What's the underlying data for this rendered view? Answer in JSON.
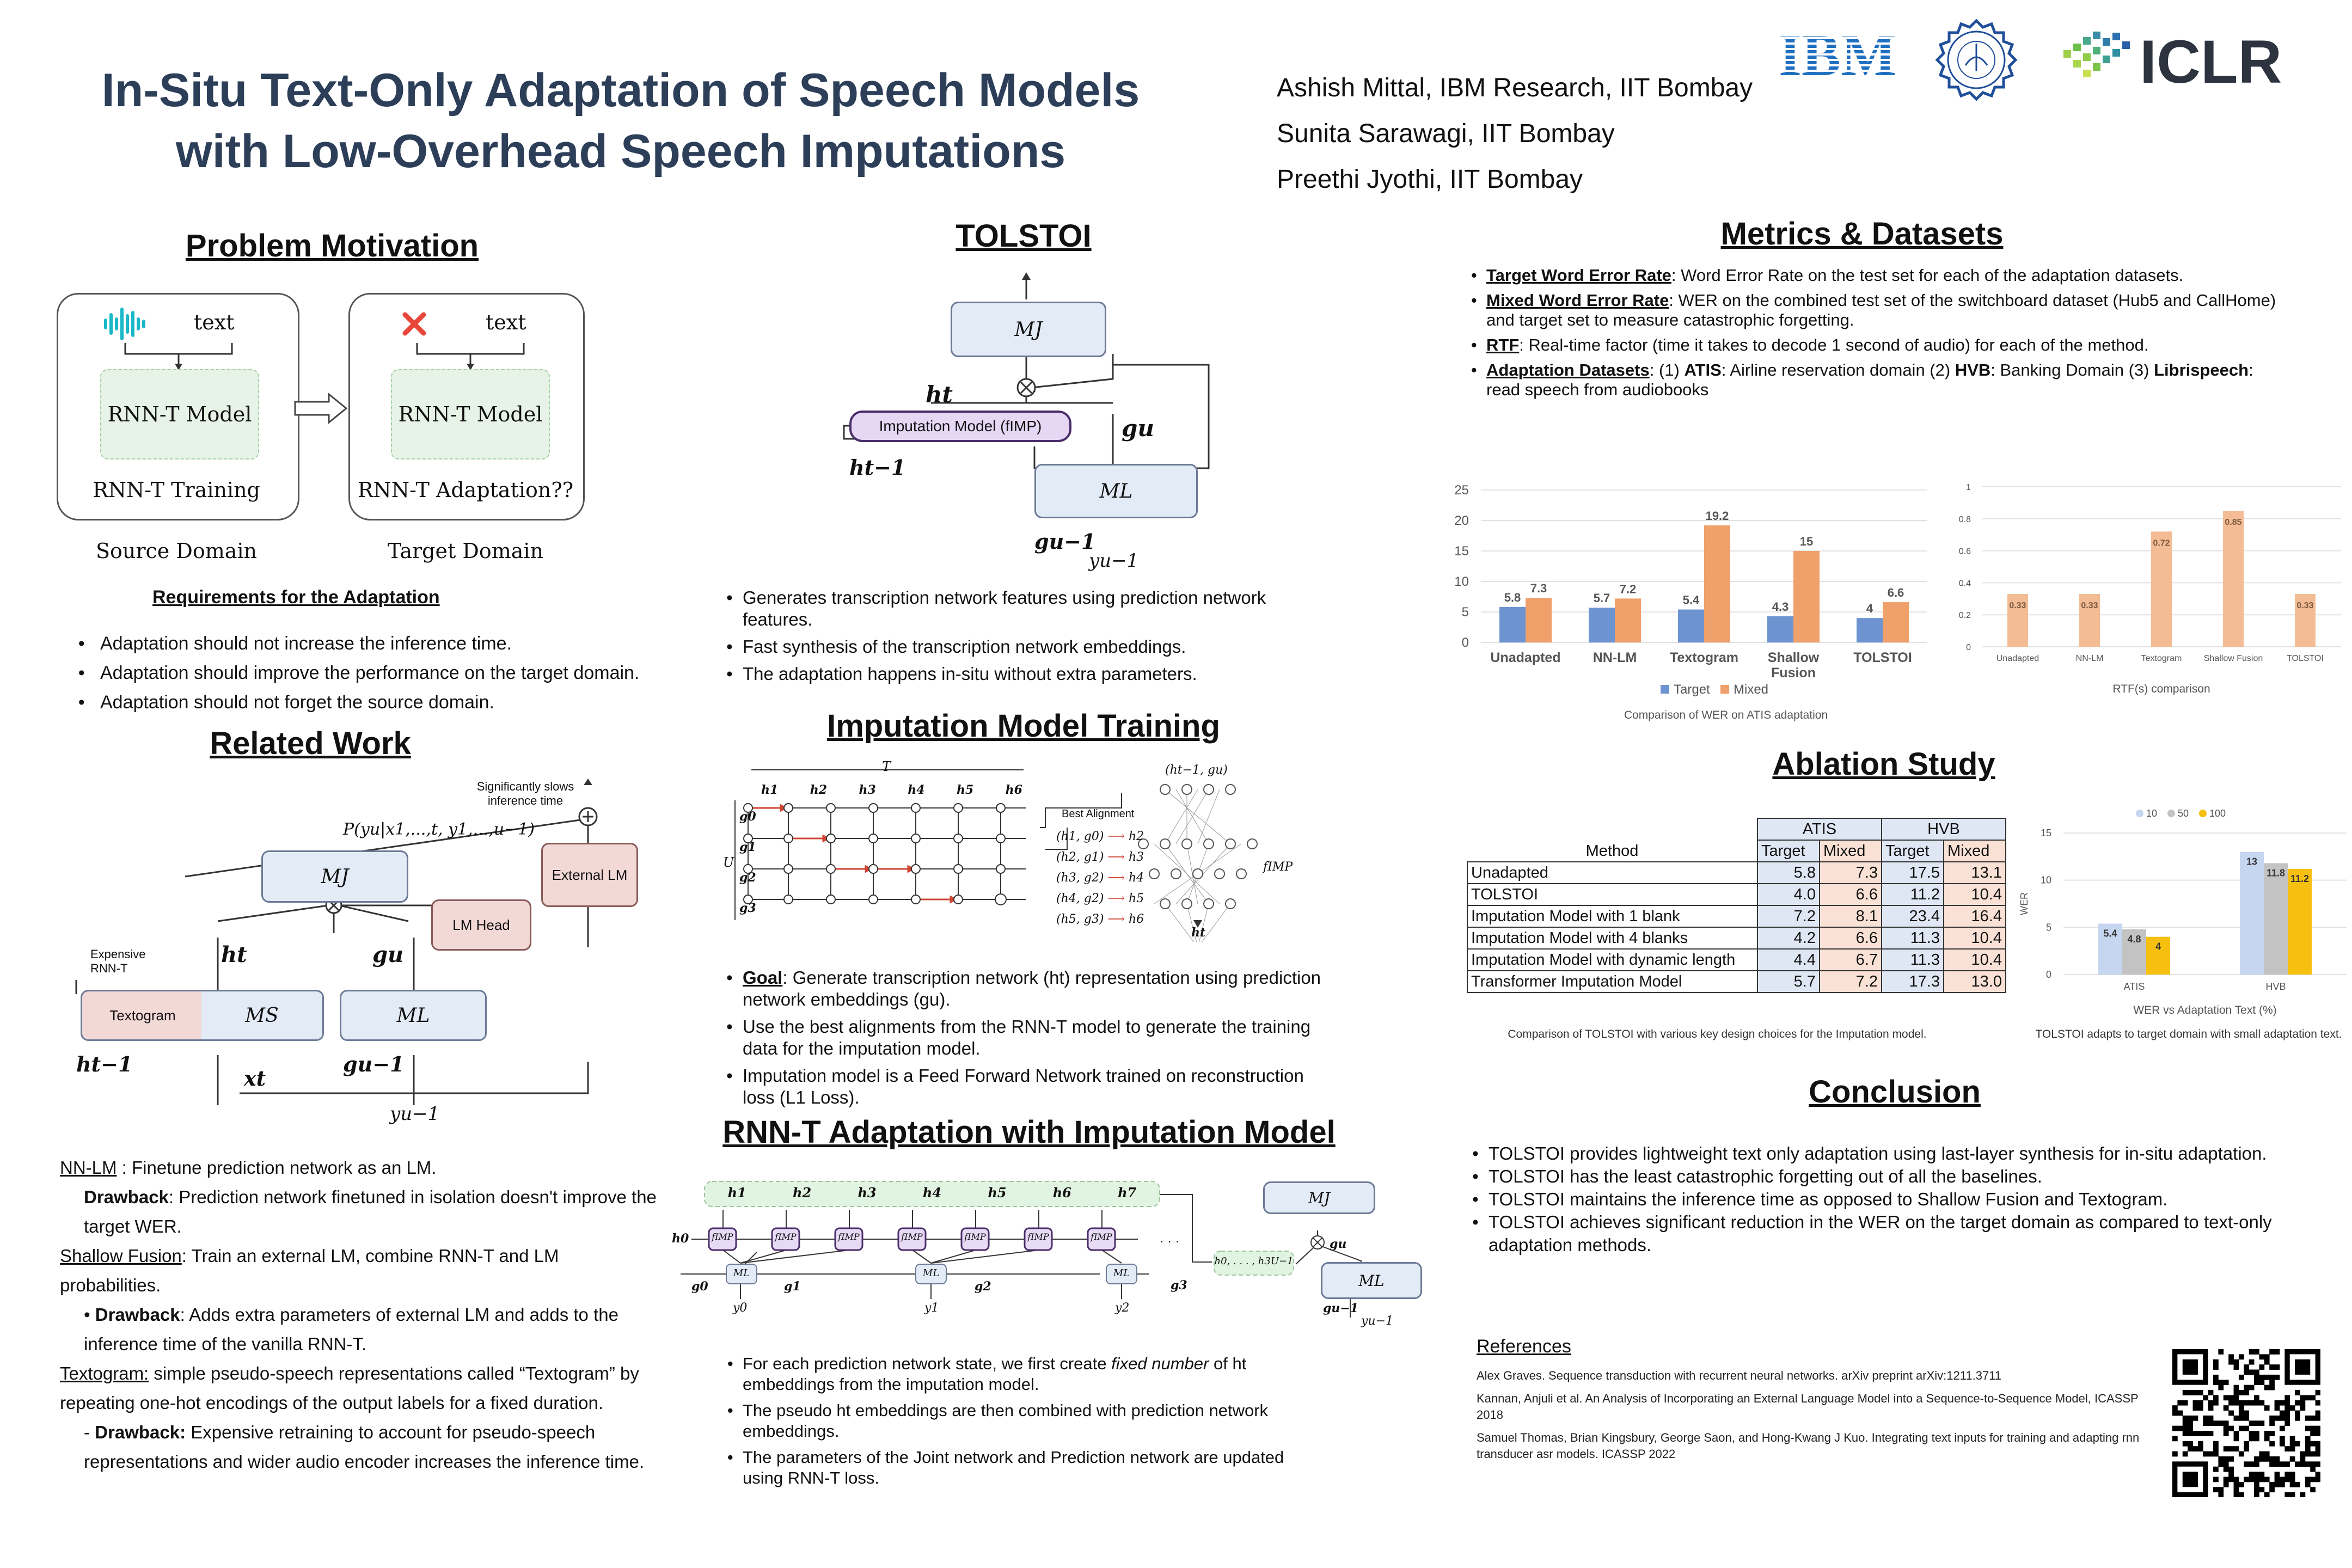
{
  "header": {
    "title_line1": "In-Situ Text-Only Adaptation of Speech Models",
    "title_line2": "with Low-Overhead Speech Imputations",
    "authors": [
      "Ashish Mittal, IBM Research, IIT Bombay",
      "Sunita Sarawagi, IIT Bombay",
      "Preethi Jyothi, IIT Bombay"
    ],
    "logos": {
      "ibm": "IBM",
      "iclr": "ICLR"
    }
  },
  "motivation": {
    "heading": "Problem Motivation",
    "box1_text": "text",
    "box1_model": "RNN-T Model",
    "box1_caption": "RNN-T Training",
    "box2_text": "text",
    "box2_model": "RNN-T Model",
    "box2_caption": "RNN-T Adaptation??",
    "source_label": "Source Domain",
    "target_label": "Target Domain",
    "req_heading": "Requirements for the Adaptation",
    "requirements": [
      "Adaptation should not increase the inference time.",
      "Adaptation should improve the performance on the target domain.",
      "Adaptation should not forget the source domain."
    ]
  },
  "related": {
    "heading": "Related Work",
    "diagram": {
      "slow_note_1": "Significantly slows",
      "slow_note_2": "inference time",
      "prob": "P(yu|x1,...,t, y1,...,u−1)",
      "mj": "MJ",
      "external_lm": "External LM",
      "lm_head": "LM Head",
      "expensive_1": "Expensive",
      "expensive_2": "RNN-T",
      "ht": "ht",
      "gu": "gu",
      "textogram": "Textogram",
      "ms": "MS",
      "ml": "ML",
      "ht1": "ht−1",
      "xt": "xt",
      "gu1": "gu−1",
      "yu1": "yu−1"
    },
    "nnlm_label": "NN-LM",
    "nnlm_text": " : Finetune prediction network as an LM.",
    "nnlm_drawback_label": "Drawback",
    "nnlm_drawback_text": ": Prediction network finetuned in isolation doesn't improve the target WER.",
    "sf_label": "Shallow Fusion",
    "sf_text": ": Train an external LM, combine RNN-T and LM probabilities.",
    "sf_drawback_label": "Drawback",
    "sf_drawback_text": ": Adds extra parameters of external LM and adds to the inference time of the vanilla RNN-T.",
    "tg_label": "Textogram:",
    "tg_text": " simple pseudo-speech representations called “Textogram” by repeating one-hot encodings of the output labels for a fixed duration.",
    "tg_drawback_label": "Drawback:",
    "tg_drawback_text": " Expensive retraining to account for pseudo-speech representations and wider audio encoder increases the inference time."
  },
  "tolstoi": {
    "heading": "TOLSTOI",
    "diagram": {
      "mj": "MJ",
      "ht": "ht",
      "imp": "Imputation Model (fIMP)",
      "gu": "gu",
      "ht1": "ht−1",
      "ml": "ML",
      "gu1": "gu−1",
      "yu1": "yu−1"
    },
    "bullets": [
      "Generates transcription network features using prediction network features.",
      "Fast synthesis of the transcription network embeddings.",
      "The adaptation happens in-situ without extra parameters."
    ]
  },
  "imputation": {
    "heading": "Imputation Model Training",
    "grid": {
      "T": "T",
      "U": "U",
      "cols": [
        "h1",
        "h2",
        "h3",
        "h4",
        "h5",
        "h6"
      ],
      "rows": [
        "g0",
        "g1",
        "g2",
        "g3"
      ],
      "best_alignment": "Best Alignment",
      "alignments": [
        [
          "(h1, g0)",
          "h2"
        ],
        [
          "(h2, g1)",
          "h3"
        ],
        [
          "(h3, g2)",
          "h4"
        ],
        [
          "(h4, g2)",
          "h5"
        ],
        [
          "(h5, g3)",
          "h6"
        ]
      ],
      "net_input": "(ht−1, gu)",
      "net_label": "fIMP",
      "net_output": "ht"
    },
    "goal_label": "Goal",
    "goal_text": ": Generate transcription network (ht) representation using prediction network embeddings (gu).",
    "bullets": [
      "Use the best alignments from the RNN-T model to generate the training data for the imputation model.",
      "Imputation model is a Feed Forward Network trained on reconstruction loss (L1 Loss)."
    ]
  },
  "adaptation": {
    "heading": "RNN-T Adaptation with Imputation Model",
    "diagram": {
      "h_top": [
        "h1",
        "h2",
        "h3",
        "h4",
        "h5",
        "h6",
        "h7"
      ],
      "h0": "h0",
      "fimp": "fIMP",
      "g_labels": [
        "g0",
        "g1",
        "g2",
        "g3"
      ],
      "y_labels": [
        "y0",
        "y1",
        "y2"
      ],
      "ml": "ML",
      "mj": "MJ",
      "seq": "h0, . . . , h3U−1",
      "gu": "gu",
      "gu1": "gu−1",
      "yu1": "yu−1",
      "dots": ". . ."
    },
    "bullet1_a": "For each prediction network state, we first create ",
    "bullet1_b": "fixed number",
    "bullet1_c": " of ht embeddings from the imputation model.",
    "bullets": [
      "The pseudo ht embeddings are then combined with prediction network embeddings.",
      "The parameters of the Joint network and Prediction network are updated using RNN-T loss."
    ]
  },
  "metrics": {
    "heading": "Metrics & Datasets",
    "items": [
      {
        "label": "Target Word Error Rate",
        "text": ":  Word Error Rate on the test set for each of the adaptation datasets."
      },
      {
        "label": "Mixed Word Error Rate",
        "text": ": WER on the combined test set of the switchboard dataset (Hub5 and CallHome) and target set to measure catastrophic forgetting."
      },
      {
        "label": "RTF",
        "text": ": Real-time factor (time it takes to decode 1 second of audio) for each of the method."
      }
    ],
    "ds_label": "Adaptation Datasets",
    "ds_text_1": ": (1) ",
    "ds_atis": "ATIS",
    "ds_text_2": ": Airline reservation domain (2) ",
    "ds_hvb": "HVB",
    "ds_text_3": ": Banking Domain (3) ",
    "ds_libri": "Librispeech",
    "ds_text_4": ": read speech from audiobooks"
  },
  "ablation": {
    "heading": "Ablation Study",
    "table": {
      "group_headers": [
        "ATIS",
        "HVB"
      ],
      "method_header": "Method",
      "sub_headers": [
        "Target",
        "Mixed",
        "Target",
        "Mixed"
      ],
      "rows": [
        {
          "method": "Unadapted",
          "v": [
            "5.8",
            "7.3",
            "17.5",
            "13.1"
          ]
        },
        {
          "method": "TOLSTOI",
          "v": [
            "4.0",
            "6.6",
            "11.2",
            "10.4"
          ]
        },
        {
          "method": "Imputation Model with 1 blank",
          "v": [
            "7.2",
            "8.1",
            "23.4",
            "16.4"
          ]
        },
        {
          "method": "Imputation Model with 4 blanks",
          "v": [
            "4.2",
            "6.6",
            "11.3",
            "10.4"
          ]
        },
        {
          "method": "Imputation Model with dynamic length",
          "v": [
            "4.4",
            "6.7",
            "11.3",
            "10.4"
          ]
        },
        {
          "method": "Transformer Imputation Model",
          "v": [
            "5.7",
            "7.2",
            "17.3",
            "13.0"
          ]
        }
      ]
    },
    "table_caption": "Comparison of TOLSTOI with various key design choices for the Imputation model.",
    "chart_caption": "TOLSTOI adapts to target domain with small adaptation text."
  },
  "conclusion": {
    "heading": "Conclusion",
    "bullets": [
      "TOLSTOI provides lightweight text only adaptation using last-layer synthesis for in-situ adaptation.",
      "TOLSTOI has the least catastrophic forgetting out of all the baselines.",
      "TOLSTOI maintains the inference time as opposed to Shallow Fusion and Textogram.",
      "TOLSTOI achieves significant reduction in the WER on the target domain as compared to text-only adaptation methods."
    ]
  },
  "references": {
    "heading": "References",
    "items": [
      "Alex Graves. Sequence transduction with recurrent neural networks. arXiv preprint arXiv:1211.3711",
      "Kannan, Anjuli et al. An Analysis of Incorporating an External Language Model into a Sequence-to-Sequence Model, ICASSP 2018",
      "Samuel Thomas, Brian Kingsbury, George Saon, and Hong-Kwang J Kuo. Integrating text inputs for training and adapting rnn transducer asr models. ICASSP 2022"
    ]
  },
  "chart_data": [
    {
      "type": "bar",
      "title": "Comparison of WER on ATIS adaptation",
      "categories": [
        "Unadapted",
        "NN-LM",
        "Textogram",
        "Shallow Fusion",
        "TOLSTOI"
      ],
      "series": [
        {
          "name": "Target",
          "values": [
            5.8,
            5.7,
            5.4,
            4.3,
            4
          ],
          "color": "#6d93d0"
        },
        {
          "name": "Mixed",
          "values": [
            7.3,
            7.2,
            19.2,
            15,
            6.6
          ],
          "color": "#f0a06a"
        }
      ],
      "y_ticks": [
        "0",
        "5",
        "10",
        "15",
        "20",
        "25"
      ],
      "ylim": [
        0,
        25
      ],
      "legend": "bottom"
    },
    {
      "type": "bar",
      "title": "RTF(s) comparison",
      "categories": [
        "Unadapted",
        "NN-LM",
        "Textogram",
        "Shallow Fusion",
        "TOLSTOI"
      ],
      "values": [
        0.33,
        0.33,
        0.72,
        0.85,
        0.33
      ],
      "color": "#f4bc94",
      "y_ticks": [
        "0",
        "0.2",
        "0.4",
        "0.6",
        "0.8",
        "1"
      ],
      "ylim": [
        0,
        1
      ]
    },
    {
      "type": "bar",
      "title": "",
      "xlabel": "WER vs Adaptation Text (%)",
      "ylabel": "WER",
      "categories": [
        "ATIS",
        "HVB"
      ],
      "series": [
        {
          "name": "10",
          "values": [
            5.4,
            13
          ],
          "color": "#c6d5f0"
        },
        {
          "name": "50",
          "values": [
            4.8,
            11.8
          ],
          "color": "#c3c3c3"
        },
        {
          "name": "100",
          "values": [
            4,
            11.2
          ],
          "color": "#f7c010"
        }
      ],
      "y_ticks": [
        "0",
        "5",
        "10",
        "15"
      ],
      "ylim": [
        0,
        15
      ],
      "legend": "top"
    }
  ]
}
